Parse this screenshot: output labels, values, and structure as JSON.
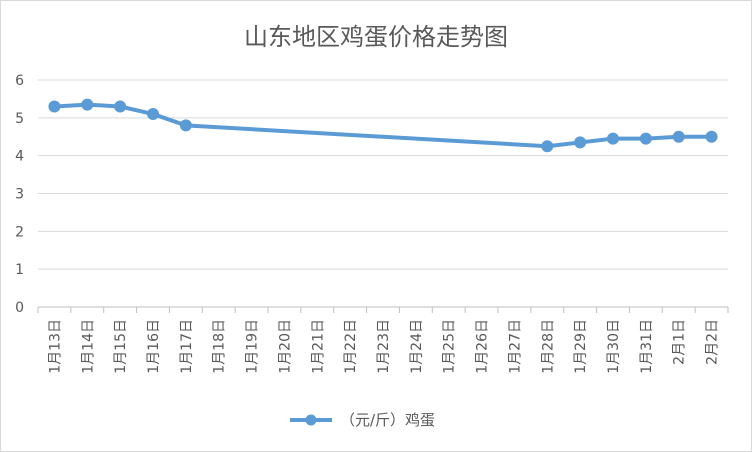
{
  "chart_data": {
    "type": "line",
    "title": "山东地区鸡蛋价格走势图",
    "xlabel": "",
    "ylabel": "",
    "categories": [
      "1月13日",
      "1月14日",
      "1月15日",
      "1月16日",
      "1月17日",
      "1月18日",
      "1月19日",
      "1月20日",
      "1月21日",
      "1月22日",
      "1月23日",
      "1月24日",
      "1月25日",
      "1月26日",
      "1月27日",
      "1月28日",
      "1月29日",
      "1月30日",
      "1月31日",
      "2月1日",
      "2月2日"
    ],
    "series": [
      {
        "name": "（元/斤）鸡蛋",
        "color": "#5b9bd5",
        "values": [
          5.3,
          5.35,
          5.3,
          5.1,
          4.8,
          null,
          null,
          null,
          null,
          null,
          null,
          null,
          null,
          null,
          null,
          4.25,
          4.35,
          4.45,
          4.45,
          4.5,
          4.5
        ]
      }
    ],
    "yticks": [
      0,
      1,
      2,
      3,
      4,
      5,
      6
    ],
    "ylim": [
      0,
      6
    ],
    "grid": true,
    "legend_position": "bottom"
  }
}
